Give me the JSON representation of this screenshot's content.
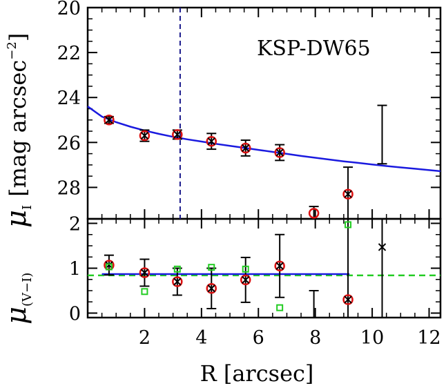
{
  "chart_data": [
    {
      "type": "scatter",
      "panel": "top",
      "label": "KSP-DW65",
      "ylabel_symbol": "μ",
      "ylabel_subscript": "I",
      "ylabel_units": "[mag arcsec",
      "ylabel_power": "−2",
      "ylabel_close": "]",
      "xlim": [
        0,
        12.4
      ],
      "ylim": [
        29.4,
        20
      ],
      "y_inverted": true,
      "yticks": [
        20,
        22,
        24,
        26,
        28
      ],
      "ytick_labels": [
        "20",
        "22",
        "24",
        "26",
        "28"
      ],
      "points": [
        {
          "x": 0.75,
          "y": 25.0,
          "err": 0.15,
          "circle": true,
          "cross": true
        },
        {
          "x": 2.0,
          "y": 25.7,
          "err": 0.25,
          "circle": true,
          "cross": true
        },
        {
          "x": 3.15,
          "y": 25.65,
          "err": 0.2,
          "circle": true,
          "cross": true
        },
        {
          "x": 4.35,
          "y": 25.95,
          "err": 0.35,
          "circle": true,
          "cross": true
        },
        {
          "x": 5.55,
          "y": 26.25,
          "err": 0.35,
          "circle": true,
          "cross": true
        },
        {
          "x": 6.75,
          "y": 26.45,
          "err": 0.35,
          "circle": true,
          "cross": true
        },
        {
          "x": 7.95,
          "y": 29.15,
          "err_low": 2.45,
          "err_high": 0.3,
          "circle": true,
          "cross": false
        },
        {
          "x": 9.15,
          "y": 28.3,
          "err_low": 1.45,
          "err_high": 1.2,
          "circle": true,
          "cross": true
        },
        {
          "x": 10.35,
          "y": 26.95,
          "err_low": 0.0,
          "err_high": 2.6,
          "circle": false,
          "cross": false
        }
      ],
      "model_curve": {
        "x": [
          0,
          0.5,
          1,
          1.5,
          2,
          2.5,
          3,
          3.5,
          4,
          4.5,
          5,
          5.5,
          6,
          6.5,
          7,
          7.5,
          8,
          8.5,
          9,
          9.5,
          10,
          10.5,
          11,
          11.5,
          12,
          12.4
        ],
        "y": [
          24.4,
          24.85,
          25.1,
          25.3,
          25.47,
          25.62,
          25.75,
          25.86,
          25.96,
          26.06,
          26.15,
          26.24,
          26.33,
          26.42,
          26.51,
          26.6,
          26.68,
          26.76,
          26.84,
          26.91,
          26.98,
          27.05,
          27.11,
          27.17,
          27.23,
          27.28
        ],
        "color": "#1a1adf"
      },
      "vline_x": 3.25,
      "vline_color": "#1a1a8c"
    },
    {
      "type": "scatter",
      "panel": "bottom",
      "ylabel_symbol": "μ",
      "ylabel_subscript": "(V−I)",
      "xlabel": "R [arcsec]",
      "xlim": [
        0,
        12.4
      ],
      "ylim": [
        -0.1,
        2.1
      ],
      "yticks": [
        0,
        1,
        2
      ],
      "ytick_labels": [
        "0",
        "1",
        "2"
      ],
      "xticks": [
        2,
        4,
        6,
        8,
        10,
        12
      ],
      "xtick_labels": [
        "2",
        "4",
        "6",
        "8",
        "10",
        "12"
      ],
      "points": [
        {
          "x": 0.75,
          "y": 1.07,
          "err": 0.22,
          "circle": true,
          "cross": true
        },
        {
          "x": 2.0,
          "y": 0.9,
          "err": 0.3,
          "circle": true,
          "cross": true
        },
        {
          "x": 3.15,
          "y": 0.7,
          "err": 0.3,
          "circle": true,
          "cross": true
        },
        {
          "x": 4.35,
          "y": 0.55,
          "err": 0.45,
          "circle": true,
          "cross": true
        },
        {
          "x": 5.55,
          "y": 0.74,
          "err": 0.5,
          "circle": true,
          "cross": true
        },
        {
          "x": 6.75,
          "y": 1.05,
          "err": 0.7,
          "circle": true,
          "cross": true
        },
        {
          "x": 7.95,
          "y": -0.1,
          "err_low": 0,
          "err_high": 0.6,
          "circle": false,
          "cross": false
        },
        {
          "x": 9.15,
          "y": 0.3,
          "err_low": 0.4,
          "err_high": 2.0,
          "circle": true,
          "cross": true
        },
        {
          "x": 10.35,
          "y": 1.47,
          "err_low": 1.6,
          "err_high": 0.7,
          "circle": false,
          "cross": true
        }
      ],
      "green_squares": [
        {
          "x": 0.75,
          "y": 1.03
        },
        {
          "x": 2.0,
          "y": 0.48
        },
        {
          "x": 3.15,
          "y": 0.98
        },
        {
          "x": 4.35,
          "y": 1.02
        },
        {
          "x": 5.55,
          "y": 0.98
        },
        {
          "x": 6.75,
          "y": 0.12
        },
        {
          "x": 9.15,
          "y": 1.97
        }
      ],
      "hline_blue": {
        "y": 0.87,
        "x_range": [
          0.5,
          9.2
        ],
        "color": "#1a1adf"
      },
      "hline_green_dashed": {
        "y": 0.84,
        "color": "#22cc22"
      }
    }
  ]
}
